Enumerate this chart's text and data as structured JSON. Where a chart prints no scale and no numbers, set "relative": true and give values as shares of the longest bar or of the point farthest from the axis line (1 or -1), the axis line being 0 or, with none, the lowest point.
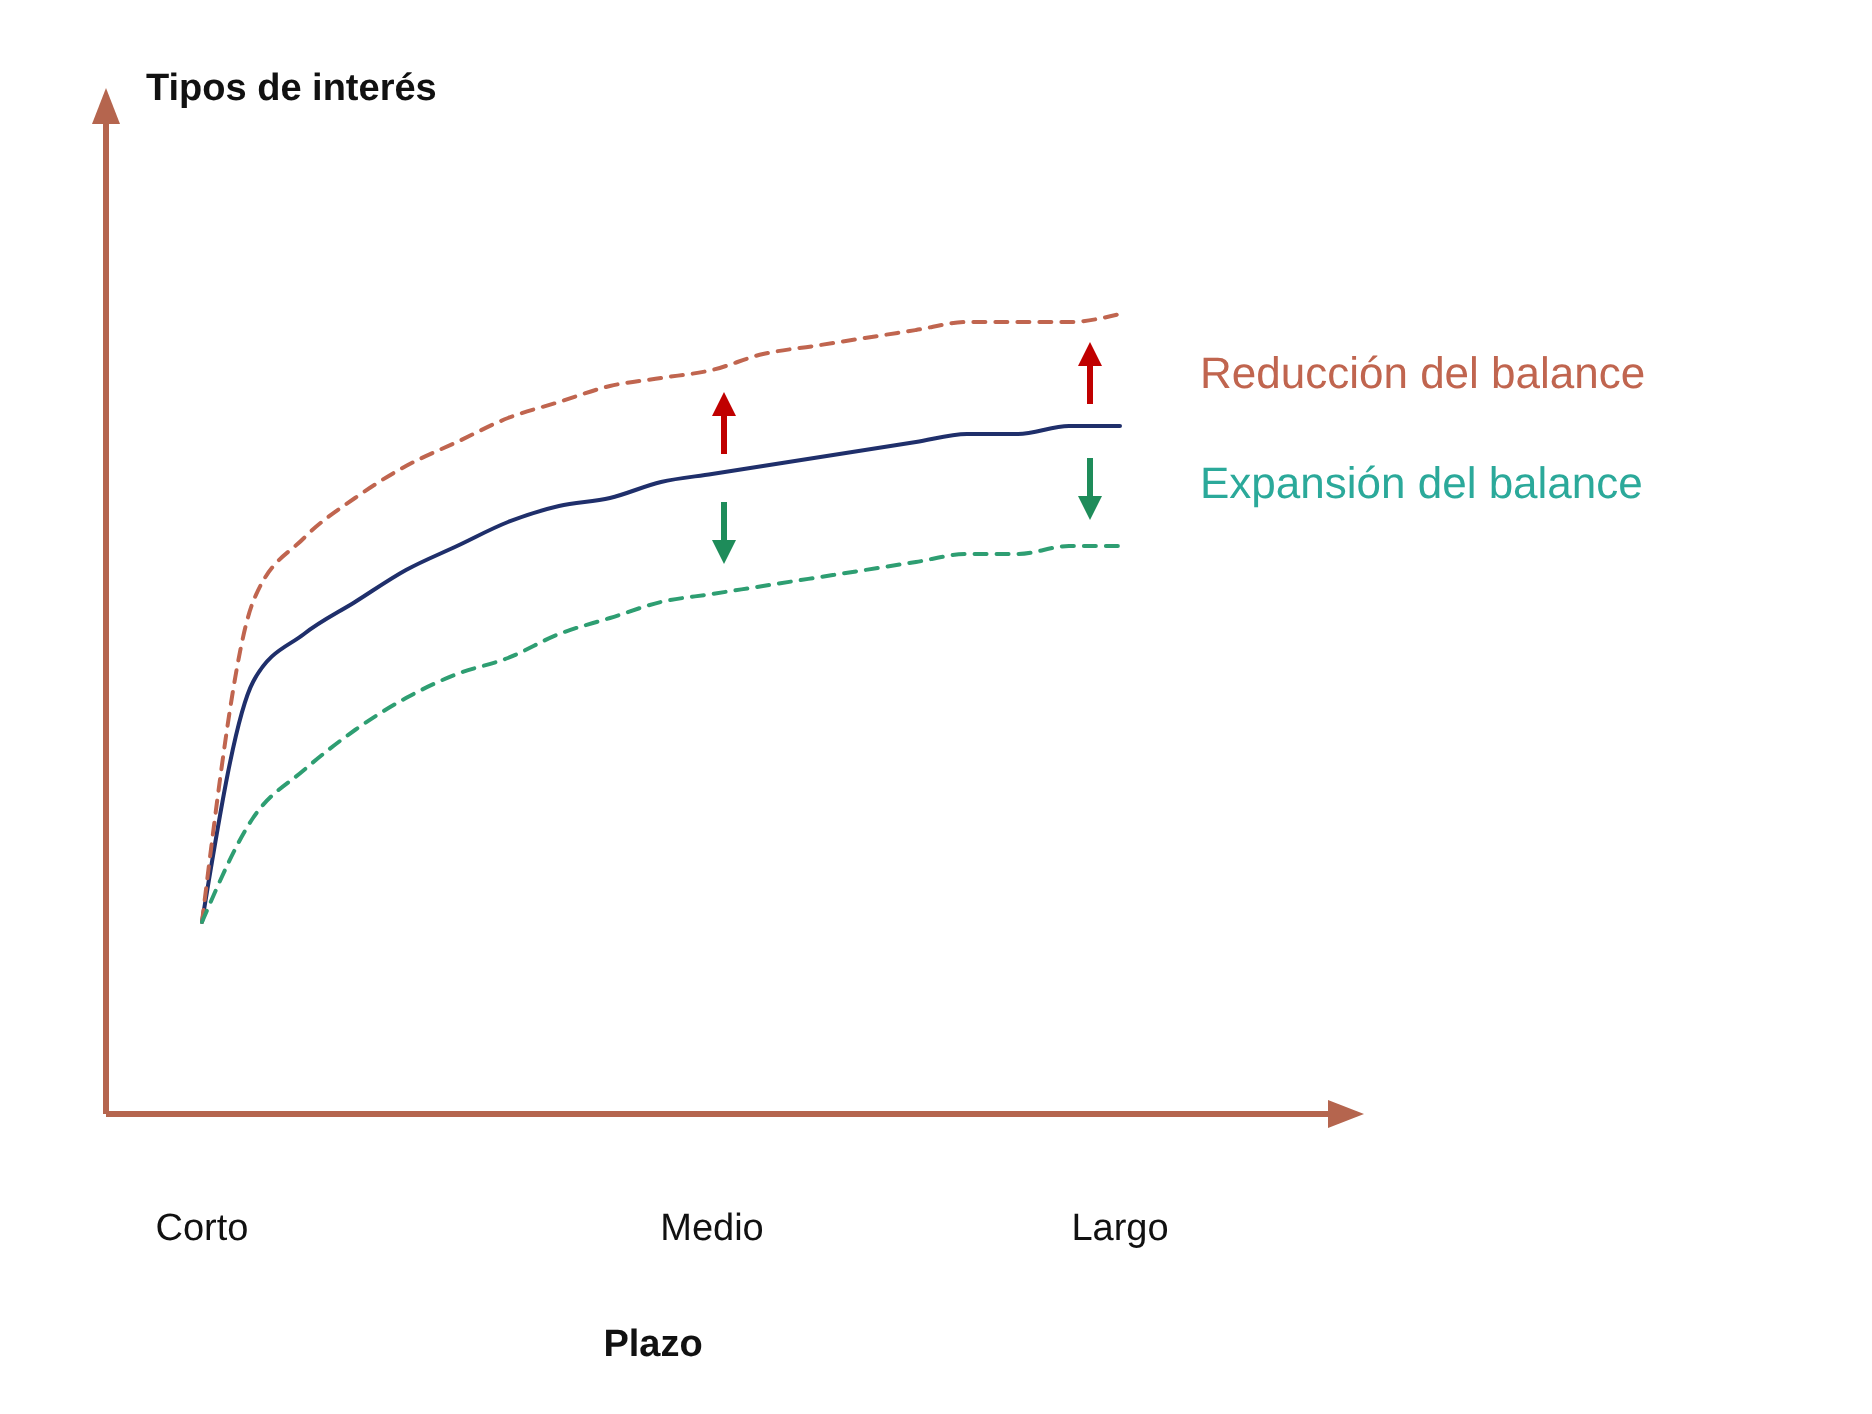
{
  "chart_data": {
    "type": "line",
    "relative": true,
    "annotations": [
      "Tipos de interés"
    ],
    "xlabel": "Plazo",
    "categories": [
      "Corto",
      null,
      null,
      null,
      null,
      null,
      null,
      null,
      null,
      null,
      "Medio",
      null,
      null,
      null,
      null,
      null,
      null,
      null,
      "Largo"
    ],
    "grid": false,
    "marker": "none",
    "series": [
      {
        "color": "#1f2f6b",
        "line_style": "solid",
        "values": [
          0.24,
          0.54,
          0.6,
          0.64,
          0.68,
          0.71,
          0.74,
          0.76,
          0.77,
          0.79,
          0.8,
          0.81,
          0.82,
          0.83,
          0.84,
          0.85,
          0.85,
          0.86,
          0.86
        ]
      },
      {
        "name": "Reducción del balance",
        "color": "#c0654f",
        "line_style": "dashed",
        "values": [
          0.24,
          0.64,
          0.72,
          0.77,
          0.81,
          0.84,
          0.87,
          0.89,
          0.91,
          0.92,
          0.93,
          0.95,
          0.96,
          0.97,
          0.98,
          0.99,
          0.99,
          0.99,
          1
        ]
      },
      {
        "name": "Expansión del balance",
        "color": "#2e9e72",
        "line_style": "dashed",
        "values": [
          0.24,
          0.37,
          0.43,
          0.48,
          0.52,
          0.55,
          0.57,
          0.6,
          0.62,
          0.64,
          0.65,
          0.66,
          0.67,
          0.68,
          0.69,
          0.7,
          0.7,
          0.71,
          0.71
        ]
      }
    ]
  }
}
